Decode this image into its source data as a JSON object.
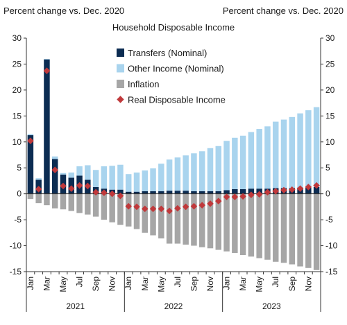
{
  "chart_data": {
    "type": "bar",
    "title": "Household Disposable Income",
    "ylabel_left": "Percent change vs. Dec. 2020",
    "ylabel_right": "Percent change vs. Dec. 2020",
    "ylim": [
      -15,
      30
    ],
    "yticks": [
      -15,
      -10,
      -5,
      0,
      5,
      10,
      15,
      20,
      25,
      30
    ],
    "legend_position": "top-center",
    "grid": false,
    "categories": [
      "Jan 2021",
      "Feb 2021",
      "Mar 2021",
      "Apr 2021",
      "May 2021",
      "Jun 2021",
      "Jul 2021",
      "Aug 2021",
      "Sep 2021",
      "Oct 2021",
      "Nov 2021",
      "Dec 2021",
      "Jan 2022",
      "Feb 2022",
      "Mar 2022",
      "Apr 2022",
      "May 2022",
      "Jun 2022",
      "Jul 2022",
      "Aug 2022",
      "Sep 2022",
      "Oct 2022",
      "Nov 2022",
      "Dec 2022",
      "Jan 2023",
      "Feb 2023",
      "Mar 2023",
      "Apr 2023",
      "May 2023",
      "Jun 2023",
      "Jul 2023",
      "Aug 2023",
      "Sep 2023",
      "Oct 2023",
      "Nov 2023",
      "Dec 2023"
    ],
    "x_tick_labels": [
      "Jan",
      "",
      "Mar",
      "",
      "May",
      "",
      "Jul",
      "",
      "Sep",
      "",
      "Nov",
      "",
      "Jan",
      "",
      "Mar",
      "",
      "May",
      "",
      "Jul",
      "",
      "Sep",
      "",
      "Nov",
      "",
      "Jan",
      "",
      "Mar",
      "",
      "May",
      "",
      "Jul",
      "",
      "Sep",
      "",
      "Nov",
      ""
    ],
    "year_labels": [
      "2021",
      "2022",
      "2023"
    ],
    "series": [
      {
        "name": "Transfers (Nominal)",
        "kind": "bar",
        "color": "#0c2c52",
        "values": [
          11.3,
          2.7,
          25.9,
          6.7,
          3.7,
          3.1,
          3.5,
          2.7,
          1.3,
          1.0,
          0.8,
          0.8,
          0.4,
          0.4,
          0.5,
          0.5,
          0.5,
          0.6,
          0.6,
          0.6,
          0.5,
          0.5,
          0.5,
          0.5,
          0.7,
          0.9,
          0.9,
          1.0,
          1.0,
          1.0,
          1.1,
          1.1,
          1.1,
          1.2,
          1.2,
          1.3
        ]
      },
      {
        "name": "Other Income (Nominal)",
        "kind": "bar",
        "color": "#a9d4ee",
        "values": [
          0.2,
          0.3,
          0.1,
          0.5,
          0.3,
          1.0,
          1.8,
          2.8,
          3.3,
          4.3,
          4.6,
          4.8,
          3.4,
          3.7,
          4.0,
          4.4,
          5.3,
          6.0,
          6.4,
          6.8,
          7.3,
          7.7,
          8.3,
          8.7,
          9.5,
          9.9,
          10.3,
          10.9,
          11.5,
          12.0,
          12.8,
          13.2,
          13.7,
          14.3,
          14.9,
          15.4
        ]
      },
      {
        "name": "Inflation",
        "kind": "bar",
        "color": "#a6a6a6",
        "values": [
          -1.0,
          -1.8,
          -2.2,
          -2.8,
          -3.0,
          -3.3,
          -3.7,
          -4.0,
          -4.4,
          -5.0,
          -5.5,
          -6.0,
          -6.3,
          -6.8,
          -7.5,
          -8.0,
          -8.6,
          -9.6,
          -9.6,
          -9.8,
          -10.0,
          -10.3,
          -10.5,
          -10.8,
          -11.1,
          -11.4,
          -11.8,
          -12.1,
          -12.4,
          -12.7,
          -13.1,
          -13.3,
          -13.6,
          -14.0,
          -14.3,
          -14.7
        ]
      },
      {
        "name": "Real Disposable Income",
        "kind": "marker",
        "color": "#c0393b",
        "values": [
          10.2,
          0.9,
          23.7,
          4.6,
          1.5,
          1.0,
          1.6,
          1.5,
          0.3,
          0.2,
          0.0,
          -0.4,
          -2.4,
          -2.5,
          -2.9,
          -2.9,
          -2.9,
          -3.3,
          -2.8,
          -2.5,
          -2.4,
          -2.2,
          -1.9,
          -1.4,
          -0.6,
          -0.6,
          -0.5,
          -0.2,
          -0.1,
          0.3,
          0.5,
          0.7,
          0.8,
          1.0,
          1.3,
          1.6
        ]
      }
    ]
  }
}
